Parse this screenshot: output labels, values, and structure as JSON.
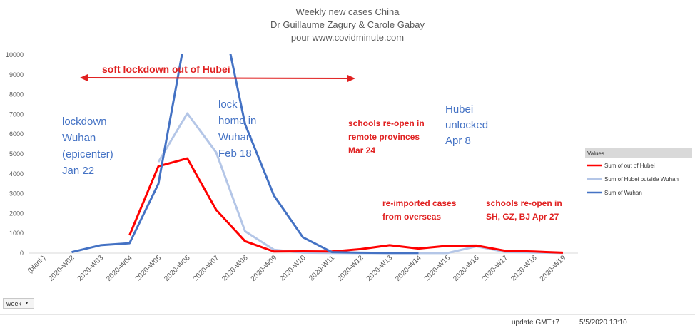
{
  "chart_data": {
    "type": "line",
    "title": [
      "Weekly new cases China",
      "Dr Guillaume Zagury & Carole Gabay",
      "pour www.covidminute.com"
    ],
    "categories": [
      "(blank)",
      "2020-W02",
      "2020-W03",
      "2020-W04",
      "2020-W05",
      "2020-W06",
      "2020-W07",
      "2020-W08",
      "2020-W09",
      "2020-W10",
      "2020-W11",
      "2020-W12",
      "2020-W13",
      "2020-W14",
      "2020-W15",
      "2020-W16",
      "2020-W17",
      "2020-W18",
      "2020-W19"
    ],
    "ylim": [
      0,
      10000
    ],
    "yticks": [
      0,
      1000,
      2000,
      3000,
      4000,
      5000,
      6000,
      7000,
      8000,
      9000,
      10000
    ],
    "grid": false,
    "legend_title": "Values",
    "legend_position": "right",
    "series": [
      {
        "name": "Sum of out of Hubei",
        "color": "#FF0000",
        "values": [
          null,
          null,
          null,
          900,
          4380,
          4780,
          2180,
          600,
          80,
          90,
          80,
          200,
          400,
          230,
          370,
          380,
          120,
          80,
          20
        ]
      },
      {
        "name": "Sum of Hubei outside Wuhan",
        "color": "#B4C6E7",
        "values": [
          null,
          null,
          null,
          null,
          4600,
          7050,
          5080,
          1100,
          170,
          20,
          10,
          5,
          5,
          5,
          5,
          340,
          60,
          30,
          10
        ]
      },
      {
        "name": "Sum of Wuhan",
        "color": "#4472C4",
        "values": [
          null,
          50,
          400,
          500,
          3500,
          11500,
          13500,
          6500,
          2900,
          800,
          50,
          20,
          10,
          10,
          null,
          null,
          null,
          null,
          null
        ]
      }
    ],
    "annotations": [
      {
        "text": "soft lockdown out of Hubei",
        "style": "red-big"
      },
      {
        "lines": [
          "lockdown",
          "Wuhan",
          "(epicenter)",
          "Jan 22"
        ],
        "style": "blue"
      },
      {
        "lines": [
          "lock",
          "home in",
          "Wuhan",
          "Feb 18"
        ],
        "style": "blue"
      },
      {
        "lines": [
          "Hubei",
          "unlocked",
          "Apr 8"
        ],
        "style": "blue"
      },
      {
        "lines": [
          "schools re-open in",
          "remote provinces",
          "Mar 24"
        ],
        "style": "red"
      },
      {
        "lines": [
          "re-imported cases",
          "from overseas"
        ],
        "style": "red"
      },
      {
        "lines": [
          "schools re-open in",
          "SH, GZ, BJ Apr 27"
        ],
        "style": "red"
      }
    ],
    "arrow_color": "#E02020"
  },
  "filter": {
    "label": "week"
  },
  "footer": {
    "update_label": "update GMT+7",
    "datetime": "5/5/2020 13:10"
  }
}
